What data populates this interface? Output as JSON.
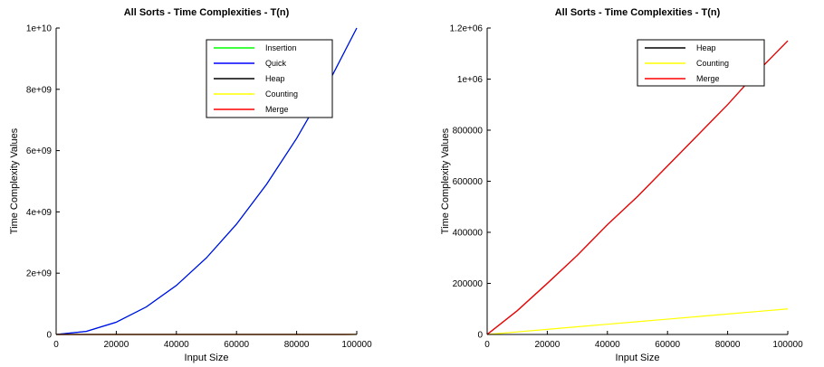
{
  "chart_data": [
    {
      "type": "line",
      "title": "All Sorts - Time Complexities - T(n)",
      "xlabel": "Input Size",
      "ylabel": "Time Complexity Values",
      "xlim": [
        0,
        100000
      ],
      "ylim": [
        0,
        10000000000
      ],
      "xticks": [
        0,
        20000,
        40000,
        60000,
        80000,
        100000
      ],
      "xtick_labels": [
        "0",
        "20000",
        "40000",
        "60000",
        "80000",
        "100000"
      ],
      "yticks": [
        0,
        2000000000,
        4000000000,
        6000000000,
        8000000000,
        10000000000
      ],
      "ytick_labels": [
        "0",
        "2e+09",
        "4e+09",
        "6e+09",
        "8e+09",
        "1e+10"
      ],
      "grid": false,
      "legend_position": "top-right",
      "series": [
        {
          "name": "Insertion",
          "color": "#00ff00",
          "x": [
            0,
            10000,
            20000,
            30000,
            40000,
            50000,
            60000,
            70000,
            80000,
            90000,
            100000
          ],
          "y": [
            0,
            100000000,
            400000000,
            900000000,
            1600000000,
            2500000000,
            3600000000,
            4900000000,
            6400000000,
            8100000000,
            10000000000
          ]
        },
        {
          "name": "Quick",
          "color": "#0000ff",
          "x": [
            0,
            10000,
            20000,
            30000,
            40000,
            50000,
            60000,
            70000,
            80000,
            90000,
            100000
          ],
          "y": [
            0,
            100000000,
            400000000,
            900000000,
            1600000000,
            2500000000,
            3600000000,
            4900000000,
            6400000000,
            8100000000,
            10000000000
          ]
        },
        {
          "name": "Heap",
          "color": "#000000",
          "x": [
            0,
            10000,
            20000,
            30000,
            40000,
            50000,
            60000,
            70000,
            80000,
            90000,
            100000
          ],
          "y": [
            0,
            93000,
            200000,
            310000,
            430000,
            540000,
            660000,
            780000,
            900000,
            1030000,
            1150000
          ]
        },
        {
          "name": "Counting",
          "color": "#ffff00",
          "x": [
            0,
            10000,
            20000,
            30000,
            40000,
            50000,
            60000,
            70000,
            80000,
            90000,
            100000
          ],
          "y": [
            0,
            10000,
            20000,
            30000,
            40000,
            50000,
            60000,
            70000,
            80000,
            90000,
            100000
          ]
        },
        {
          "name": "Merge",
          "color": "#ff0000",
          "x": [
            0,
            10000,
            20000,
            30000,
            40000,
            50000,
            60000,
            70000,
            80000,
            90000,
            100000
          ],
          "y": [
            0,
            93000,
            200000,
            310000,
            430000,
            540000,
            660000,
            780000,
            900000,
            1030000,
            1150000
          ]
        }
      ]
    },
    {
      "type": "line",
      "title": "All Sorts - Time Complexities - T(n)",
      "xlabel": "Input Size",
      "ylabel": "Time Complexity Values",
      "xlim": [
        0,
        100000
      ],
      "ylim": [
        0,
        1200000
      ],
      "xticks": [
        0,
        20000,
        40000,
        60000,
        80000,
        100000
      ],
      "xtick_labels": [
        "0",
        "20000",
        "40000",
        "60000",
        "80000",
        "100000"
      ],
      "yticks": [
        0,
        200000,
        400000,
        600000,
        800000,
        1000000,
        1200000
      ],
      "ytick_labels": [
        "0",
        "200000",
        "400000",
        "600000",
        "800000",
        "1e+06",
        "1.2e+06"
      ],
      "grid": false,
      "legend_position": "top-right",
      "series": [
        {
          "name": "Heap",
          "color": "#000000",
          "x": [
            0,
            10000,
            20000,
            30000,
            40000,
            50000,
            60000,
            70000,
            80000,
            90000,
            100000
          ],
          "y": [
            0,
            93000,
            200000,
            310000,
            430000,
            540000,
            660000,
            780000,
            900000,
            1030000,
            1150000
          ]
        },
        {
          "name": "Counting",
          "color": "#ffff00",
          "x": [
            0,
            10000,
            20000,
            30000,
            40000,
            50000,
            60000,
            70000,
            80000,
            90000,
            100000
          ],
          "y": [
            0,
            10000,
            20000,
            30000,
            40000,
            50000,
            60000,
            70000,
            80000,
            90000,
            100000
          ]
        },
        {
          "name": "Merge",
          "color": "#ff0000",
          "x": [
            0,
            10000,
            20000,
            30000,
            40000,
            50000,
            60000,
            70000,
            80000,
            90000,
            100000
          ],
          "y": [
            0,
            93000,
            200000,
            310000,
            430000,
            540000,
            660000,
            780000,
            900000,
            1030000,
            1150000
          ]
        }
      ]
    }
  ]
}
